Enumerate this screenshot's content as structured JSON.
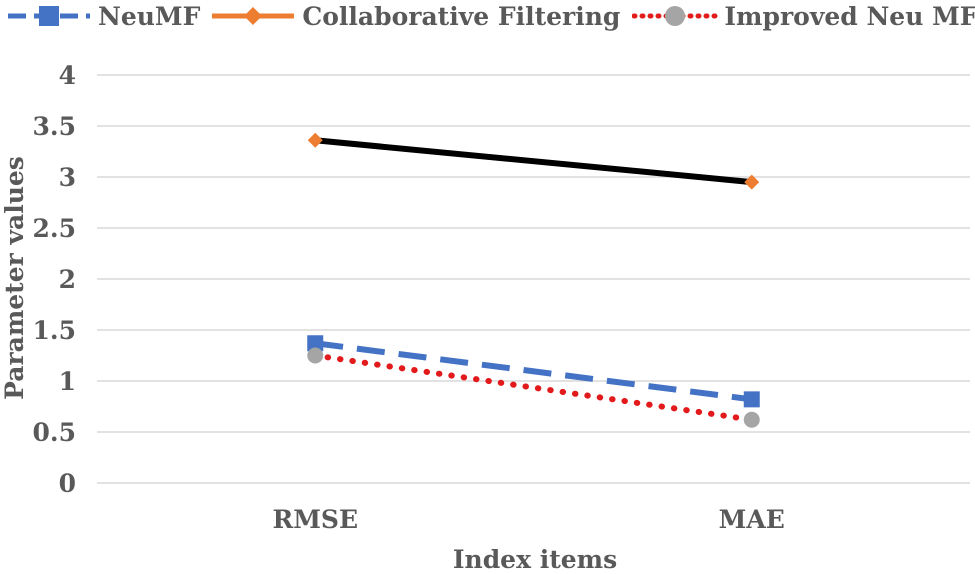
{
  "chart_data": {
    "type": "line",
    "title": "",
    "xlabel": "Index items",
    "ylabel": "Parameter values",
    "categories": [
      "RMSE",
      "MAE"
    ],
    "ylim": [
      0,
      4
    ],
    "yticks": [
      "0",
      "0.5",
      "1",
      "1.5",
      "2",
      "2.5",
      "3",
      "3.5",
      "4"
    ],
    "grid": true,
    "legend_position": "top",
    "series": [
      {
        "name": "NeuMF",
        "values": [
          1.37,
          0.82
        ],
        "line_color": "#4472C4",
        "marker_color": "#4472C4",
        "line_style": "dashed",
        "marker": "square"
      },
      {
        "name": "Collaborative Filtering",
        "values": [
          3.36,
          2.95
        ],
        "line_color": "#000000",
        "marker_color": "#ED7D31",
        "legend_color": "#ED7D31",
        "line_style": "solid",
        "marker": "diamond"
      },
      {
        "name": "Improved Neu MF",
        "values": [
          1.25,
          0.62
        ],
        "line_color": "#E31A1C",
        "marker_color": "#A5A5A5",
        "line_style": "dotted",
        "marker": "circle"
      }
    ]
  }
}
